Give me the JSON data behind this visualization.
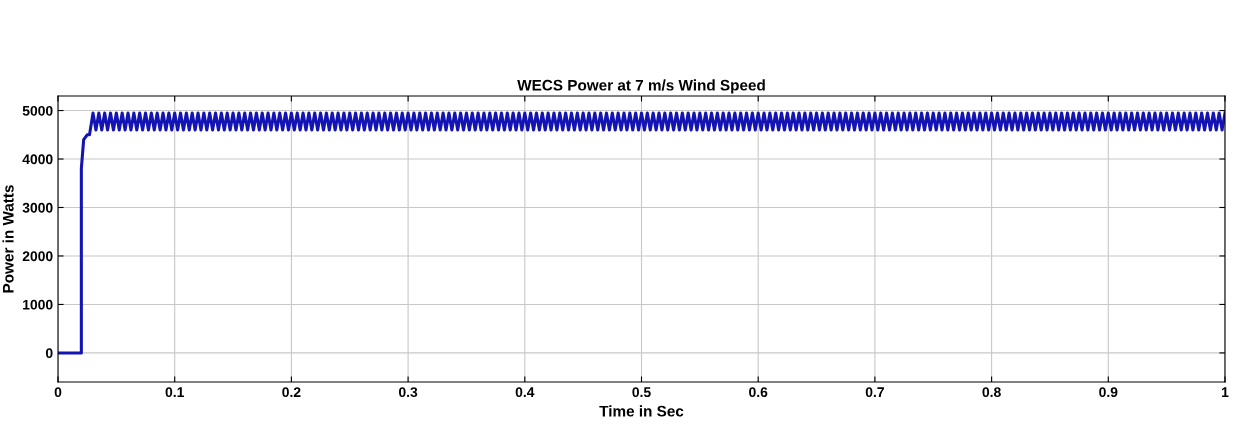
{
  "chart_data": {
    "type": "line",
    "title": "WECS Power at 7 m/s Wind Speed",
    "xlabel": "Time in Sec",
    "ylabel": "Power in Watts",
    "xlim": [
      0,
      1
    ],
    "xticks": [
      0,
      0.1,
      0.2,
      0.3,
      0.4,
      0.5,
      0.6,
      0.7,
      0.8,
      0.9,
      1
    ],
    "ylim": [
      -600,
      5300
    ],
    "yticks": [
      0,
      1000,
      2000,
      3000,
      4000,
      5000
    ],
    "grid": true,
    "legend": false,
    "series": [
      {
        "color": "#1414b4",
        "x": [
          0,
          0.02,
          0.02,
          0.021,
          0.022,
          0.025,
          0.027,
          0.03,
          0.0325,
          0.035,
          0.0375,
          0.04,
          0.0425,
          0.045,
          0.0475,
          0.05,
          0.0525,
          0.055,
          0.0575,
          0.06,
          0.0625,
          0.065,
          0.0675,
          0.07,
          0.0725,
          0.075,
          0.0775,
          0.08,
          0.0825,
          0.085,
          0.0875,
          0.09,
          0.0925,
          0.095,
          0.0975,
          0.1,
          0.1025,
          0.105,
          0.1075,
          0.11,
          0.1125,
          0.115,
          0.1175,
          0.12,
          0.1225,
          0.125,
          0.1275,
          0.13,
          0.1325,
          0.135,
          0.1375,
          0.14,
          0.1425,
          0.145,
          0.1475,
          0.15,
          0.1525,
          0.155,
          0.1575,
          0.16,
          0.1625,
          0.165,
          0.1675,
          0.17,
          0.1725,
          0.175,
          0.1775,
          0.18,
          0.1825,
          0.185,
          0.1875,
          0.19,
          0.1925,
          0.195,
          0.1975,
          0.2,
          0.2025,
          0.205,
          0.2075,
          0.21,
          0.2125,
          0.215,
          0.2175,
          0.22,
          0.2225,
          0.225,
          0.2275,
          0.23,
          0.2325,
          0.235,
          0.2375,
          0.24,
          0.2425,
          0.245,
          0.2475,
          0.25,
          0.2525,
          0.255,
          0.2575,
          0.26,
          0.2625,
          0.265,
          0.2675,
          0.27,
          0.2725,
          0.275,
          0.2775,
          0.28,
          0.2825,
          0.285,
          0.2875,
          0.29,
          0.2925,
          0.295,
          0.2975,
          0.3,
          0.3025,
          0.305,
          0.3075,
          0.31,
          0.3125,
          0.315,
          0.3175,
          0.32,
          0.3225,
          0.325,
          0.3275,
          0.33,
          0.3325,
          0.335,
          0.3375,
          0.34,
          0.3425,
          0.345,
          0.3475,
          0.35,
          0.3525,
          0.355,
          0.3575,
          0.36,
          0.3625,
          0.365,
          0.3675,
          0.37,
          0.3725,
          0.375,
          0.3775,
          0.38,
          0.3825,
          0.385,
          0.3875,
          0.39,
          0.3925,
          0.395,
          0.3975,
          0.4,
          0.4025,
          0.405,
          0.4075,
          0.41,
          0.4125,
          0.415,
          0.4175,
          0.42,
          0.4225,
          0.425,
          0.4275,
          0.43,
          0.4325,
          0.435,
          0.4375,
          0.44,
          0.4425,
          0.445,
          0.4475,
          0.45,
          0.4525,
          0.455,
          0.4575,
          0.46,
          0.4625,
          0.465,
          0.4675,
          0.47,
          0.4725,
          0.475,
          0.4775,
          0.48,
          0.4825,
          0.485,
          0.4875,
          0.49,
          0.4925,
          0.495,
          0.4975,
          0.5,
          0.5025,
          0.505,
          0.5075,
          0.51,
          0.5125,
          0.515,
          0.5175,
          0.52,
          0.5225,
          0.525,
          0.5275,
          0.53,
          0.5325,
          0.535,
          0.5375,
          0.54,
          0.5425,
          0.545,
          0.5475,
          0.55,
          0.5525,
          0.555,
          0.5575,
          0.56,
          0.5625,
          0.565,
          0.5675,
          0.57,
          0.5725,
          0.575,
          0.5775,
          0.58,
          0.5825,
          0.585,
          0.5875,
          0.59,
          0.5925,
          0.595,
          0.5975,
          0.6,
          0.6025,
          0.605,
          0.6075,
          0.61,
          0.6125,
          0.615,
          0.6175,
          0.62,
          0.6225,
          0.625,
          0.6275,
          0.63,
          0.6325,
          0.635,
          0.6375,
          0.64,
          0.6425,
          0.645,
          0.6475,
          0.65,
          0.6525,
          0.655,
          0.6575,
          0.66,
          0.6625,
          0.665,
          0.6675,
          0.67,
          0.6725,
          0.675,
          0.6775,
          0.68,
          0.6825,
          0.685,
          0.6875,
          0.69,
          0.6925,
          0.695,
          0.6975,
          0.7,
          0.7025,
          0.705,
          0.7075,
          0.71,
          0.7125,
          0.715,
          0.7175,
          0.72,
          0.7225,
          0.725,
          0.7275,
          0.73,
          0.7325,
          0.735,
          0.7375,
          0.74,
          0.7425,
          0.745,
          0.7475,
          0.75,
          0.7525,
          0.755,
          0.7575,
          0.76,
          0.7625,
          0.765,
          0.7675,
          0.77,
          0.7725,
          0.775,
          0.7775,
          0.78,
          0.7825,
          0.785,
          0.7875,
          0.79,
          0.7925,
          0.795,
          0.7975,
          0.8,
          0.8025,
          0.805,
          0.8075,
          0.81,
          0.8125,
          0.815,
          0.8175,
          0.82,
          0.8225,
          0.825,
          0.8275,
          0.83,
          0.8325,
          0.835,
          0.8375,
          0.84,
          0.8425,
          0.845,
          0.8475,
          0.85,
          0.8525,
          0.855,
          0.8575,
          0.86,
          0.8625,
          0.865,
          0.8675,
          0.87,
          0.8725,
          0.875,
          0.8775,
          0.88,
          0.8825,
          0.885,
          0.8875,
          0.89,
          0.8925,
          0.895,
          0.8975,
          0.9,
          0.9025,
          0.905,
          0.9075,
          0.91,
          0.9125,
          0.915,
          0.9175,
          0.92,
          0.9225,
          0.925,
          0.9275,
          0.93,
          0.9325,
          0.935,
          0.9375,
          0.94,
          0.9425,
          0.945,
          0.9475,
          0.95,
          0.9525,
          0.955,
          0.9575,
          0.96,
          0.9625,
          0.965,
          0.9675,
          0.97,
          0.9725,
          0.975,
          0.9775,
          0.98,
          0.9825,
          0.985,
          0.9875,
          0.99,
          0.9925,
          0.995,
          0.9975,
          1
        ],
        "values": [
          0,
          0,
          3800,
          4100,
          4400,
          4500,
          4500,
          4950,
          4600,
          4950,
          4600,
          4950,
          4600,
          4950,
          4600,
          4950,
          4600,
          4950,
          4600,
          4950,
          4600,
          4950,
          4600,
          4950,
          4600,
          4950,
          4600,
          4950,
          4600,
          4950,
          4600,
          4950,
          4600,
          4950,
          4600,
          4950,
          4600,
          4950,
          4600,
          4950,
          4600,
          4950,
          4600,
          4950,
          4600,
          4950,
          4600,
          4950,
          4600,
          4950,
          4600,
          4950,
          4600,
          4950,
          4600,
          4950,
          4600,
          4950,
          4600,
          4950,
          4600,
          4950,
          4600,
          4950,
          4600,
          4950,
          4600,
          4950,
          4600,
          4950,
          4600,
          4950,
          4600,
          4950,
          4600,
          4950,
          4600,
          4950,
          4600,
          4950,
          4600,
          4950,
          4600,
          4950,
          4600,
          4950,
          4600,
          4950,
          4600,
          4950,
          4600,
          4950,
          4600,
          4950,
          4600,
          4950,
          4600,
          4950,
          4600,
          4950,
          4600,
          4950,
          4600,
          4950,
          4600,
          4950,
          4600,
          4950,
          4600,
          4950,
          4600,
          4950,
          4600,
          4950,
          4600,
          4950,
          4600,
          4950,
          4600,
          4950,
          4600,
          4950,
          4600,
          4950,
          4600,
          4950,
          4600,
          4950,
          4600,
          4950,
          4600,
          4950,
          4600,
          4950,
          4600,
          4950,
          4600,
          4950,
          4600,
          4950,
          4600,
          4950,
          4600,
          4950,
          4600,
          4950,
          4600,
          4950,
          4600,
          4950,
          4600,
          4950,
          4600,
          4950,
          4600,
          4950,
          4600,
          4950,
          4600,
          4950,
          4600,
          4950,
          4600,
          4950,
          4600,
          4950,
          4600,
          4950,
          4600,
          4950,
          4600,
          4950,
          4600,
          4950,
          4600,
          4950,
          4600,
          4950,
          4600,
          4950,
          4600,
          4950,
          4600,
          4950,
          4600,
          4950,
          4600,
          4950,
          4600,
          4950,
          4600,
          4950,
          4600,
          4950,
          4600,
          4950,
          4600,
          4950,
          4600,
          4950,
          4600,
          4950,
          4600,
          4950,
          4600,
          4950,
          4600,
          4950,
          4600,
          4950,
          4600,
          4950,
          4600,
          4950,
          4600,
          4950,
          4600,
          4950,
          4600,
          4950,
          4600,
          4950,
          4600,
          4950,
          4600,
          4950,
          4600,
          4950,
          4600,
          4950,
          4600,
          4950,
          4600,
          4950,
          4600,
          4950,
          4600,
          4950,
          4600,
          4950,
          4600,
          4950,
          4600,
          4950,
          4600,
          4950,
          4600,
          4950,
          4600,
          4950,
          4600,
          4950,
          4600,
          4950,
          4600,
          4950,
          4600,
          4950,
          4600,
          4950,
          4600,
          4950,
          4600,
          4950,
          4600,
          4950,
          4600,
          4950,
          4600,
          4950,
          4600,
          4950,
          4600,
          4950,
          4600,
          4950,
          4600,
          4950,
          4600,
          4950,
          4600,
          4950,
          4600,
          4950,
          4600,
          4950,
          4600,
          4950,
          4600,
          4950,
          4600,
          4950,
          4600,
          4950,
          4600,
          4950,
          4600,
          4950,
          4600,
          4950,
          4600,
          4950,
          4600,
          4950,
          4600,
          4950,
          4600,
          4950,
          4600,
          4950,
          4600,
          4950,
          4600,
          4950,
          4600,
          4950,
          4600,
          4950,
          4600,
          4950,
          4600,
          4950,
          4600,
          4950,
          4600,
          4950,
          4600,
          4950,
          4600,
          4950,
          4600,
          4950,
          4600,
          4950,
          4600,
          4950,
          4600,
          4950,
          4600,
          4950,
          4600,
          4950,
          4600,
          4950,
          4600,
          4950,
          4600,
          4950,
          4600,
          4950,
          4600,
          4950,
          4600,
          4950,
          4600,
          4950,
          4600,
          4950,
          4600,
          4950,
          4600,
          4950,
          4600,
          4950,
          4600,
          4950,
          4600,
          4950,
          4600,
          4950,
          4600,
          4950,
          4600,
          4950,
          4600,
          4950,
          4600,
          4950,
          4600,
          4950,
          4600,
          4950,
          4600,
          4950,
          4600,
          4950,
          4600,
          4950,
          4600,
          4950,
          4600,
          4950,
          4600,
          4950,
          4600,
          4950
        ]
      }
    ]
  }
}
